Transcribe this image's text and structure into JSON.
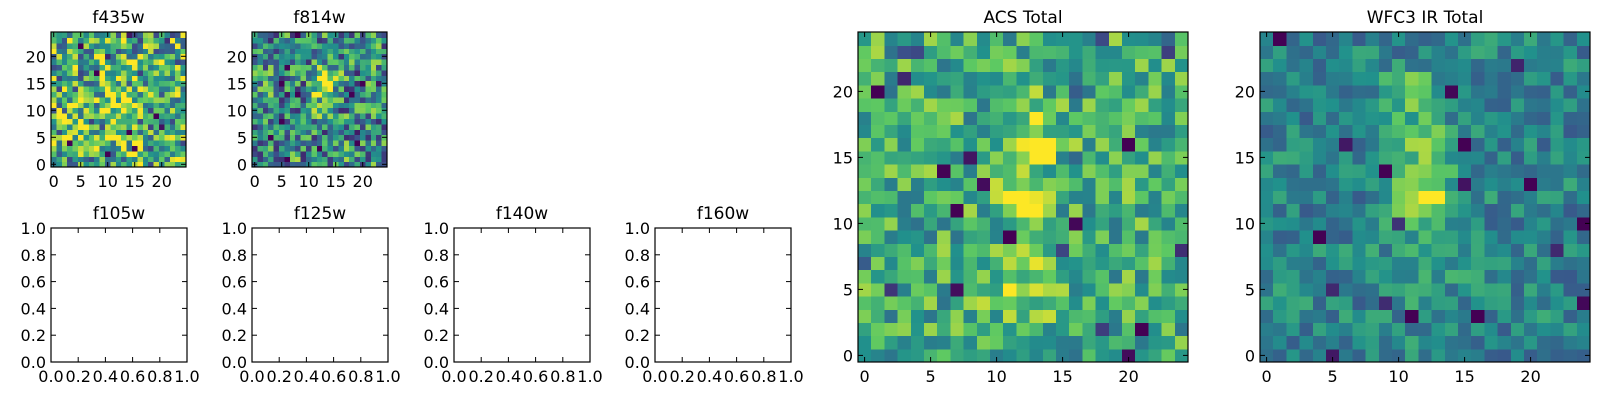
{
  "figure": {
    "colormap": [
      "#440154",
      "#3b528b",
      "#21918c",
      "#5ec962",
      "#fde725"
    ]
  },
  "chart_data": [
    {
      "id": "f435w",
      "type": "heatmap",
      "title": "f435w",
      "grid_size": [
        25,
        25
      ],
      "xlim": [
        -0.5,
        24.5
      ],
      "ylim": [
        -0.5,
        24.5
      ],
      "xticks": [
        "0",
        "5",
        "10",
        "15",
        "20"
      ],
      "yticks": [
        "0",
        "5",
        "10",
        "15",
        "20"
      ],
      "seed": 11,
      "noise": 0.85,
      "base": 0.62,
      "blobs": [
        {
          "x": 12,
          "y": 12,
          "amp": 0.25,
          "sigma": 2.0
        },
        {
          "x": 13,
          "y": 5,
          "amp": 0.2,
          "sigma": 2.0
        }
      ]
    },
    {
      "id": "f814w",
      "type": "heatmap",
      "title": "f814w",
      "grid_size": [
        25,
        25
      ],
      "xlim": [
        -0.5,
        24.5
      ],
      "ylim": [
        -0.5,
        24.5
      ],
      "xticks": [
        "0",
        "5",
        "10",
        "15",
        "20"
      ],
      "yticks": [
        "0",
        "5",
        "10",
        "15",
        "20"
      ],
      "seed": 23,
      "noise": 0.75,
      "base": 0.5,
      "blobs": [
        {
          "x": 13,
          "y": 16,
          "amp": 0.5,
          "sigma": 1.4
        },
        {
          "x": 12,
          "y": 12,
          "amp": 0.45,
          "sigma": 1.3
        }
      ]
    },
    {
      "id": "f105w",
      "type": "empty",
      "title": "f105w",
      "xlim": [
        0.0,
        1.0
      ],
      "ylim": [
        0.0,
        1.0
      ],
      "xticks": [
        "0.0",
        "0.2",
        "0.4",
        "0.6",
        "0.8",
        "1.0"
      ],
      "yticks": [
        "0.0",
        "0.2",
        "0.4",
        "0.6",
        "0.8",
        "1.0"
      ]
    },
    {
      "id": "f125w",
      "type": "empty",
      "title": "f125w",
      "xlim": [
        0.0,
        1.0
      ],
      "ylim": [
        0.0,
        1.0
      ],
      "xticks": [
        "0.0",
        "0.2",
        "0.4",
        "0.6",
        "0.8",
        "1.0"
      ],
      "yticks": [
        "0.0",
        "0.2",
        "0.4",
        "0.6",
        "0.8",
        "1.0"
      ]
    },
    {
      "id": "f140w",
      "type": "empty",
      "title": "f140w",
      "xlim": [
        0.0,
        1.0
      ],
      "ylim": [
        0.0,
        1.0
      ],
      "xticks": [
        "0.0",
        "0.2",
        "0.4",
        "0.6",
        "0.8",
        "1.0"
      ],
      "yticks": [
        "0.0",
        "0.2",
        "0.4",
        "0.6",
        "0.8",
        "1.0"
      ]
    },
    {
      "id": "f160w",
      "type": "empty",
      "title": "f160w",
      "xlim": [
        0.0,
        1.0
      ],
      "ylim": [
        0.0,
        1.0
      ],
      "xticks": [
        "0.0",
        "0.2",
        "0.4",
        "0.6",
        "0.8",
        "1.0"
      ],
      "yticks": [
        "0.0",
        "0.2",
        "0.4",
        "0.6",
        "0.8",
        "1.0"
      ]
    },
    {
      "id": "acs-total",
      "type": "heatmap",
      "title": "ACS Total",
      "grid_size": [
        25,
        25
      ],
      "xlim": [
        -0.5,
        24.5
      ],
      "ylim": [
        -0.5,
        24.5
      ],
      "xticks": [
        "0",
        "5",
        "10",
        "15",
        "20"
      ],
      "yticks": [
        "0",
        "5",
        "10",
        "15",
        "20"
      ],
      "seed": 37,
      "noise": 0.5,
      "base": 0.62,
      "blobs": [
        {
          "x": 12,
          "y": 12,
          "amp": 0.4,
          "sigma": 1.4
        },
        {
          "x": 13,
          "y": 16,
          "amp": 0.35,
          "sigma": 1.2
        },
        {
          "x": 12,
          "y": 19,
          "amp": 0.25,
          "sigma": 1.0
        },
        {
          "x": 12,
          "y": 5,
          "amp": 0.2,
          "sigma": 2.0
        }
      ]
    },
    {
      "id": "wfc3-ir-total",
      "type": "heatmap",
      "title": "WFC3 IR Total",
      "grid_size": [
        25,
        25
      ],
      "xlim": [
        -0.5,
        24.5
      ],
      "ylim": [
        -0.5,
        24.5
      ],
      "xticks": [
        "0",
        "5",
        "10",
        "15",
        "20"
      ],
      "yticks": [
        "0",
        "5",
        "10",
        "15",
        "20"
      ],
      "seed": 53,
      "noise": 0.35,
      "base": 0.45,
      "blobs": [
        {
          "x": 12,
          "y": 12,
          "amp": 0.5,
          "sigma": 1.5
        },
        {
          "x": 11,
          "y": 20,
          "amp": 0.4,
          "sigma": 1.2
        },
        {
          "x": 12,
          "y": 16,
          "amp": 0.3,
          "sigma": 1.5
        },
        {
          "x": 12,
          "y": 7,
          "amp": 0.18,
          "sigma": 2.0
        }
      ]
    }
  ]
}
